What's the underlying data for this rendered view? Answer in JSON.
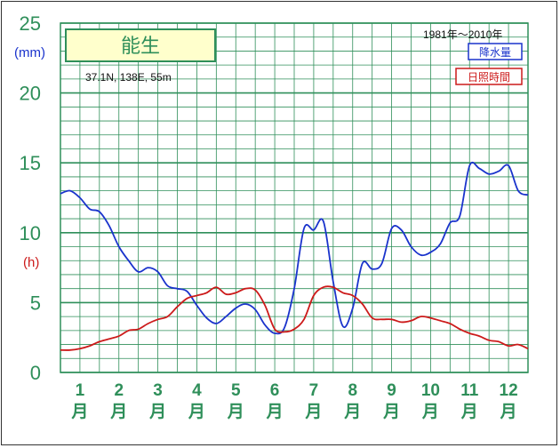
{
  "chart_data": {
    "type": "line",
    "title": "能生",
    "location": "37.1N, 138E, 55m",
    "period": "1981年～2010年",
    "y_unit_left": "(mm)",
    "y_unit_right": "(h)",
    "ylim": [
      0,
      25
    ],
    "yticks": [
      "0",
      "5",
      "10",
      "15",
      "20",
      "25"
    ],
    "months": [
      "1",
      "2",
      "3",
      "4",
      "5",
      "6",
      "7",
      "8",
      "9",
      "10",
      "11",
      "12"
    ],
    "month_suffix": "月",
    "grid": true,
    "legend_position": "top-right",
    "series": [
      {
        "name": "降水量",
        "color": "#1a33cc",
        "x": [
          0.0,
          0.25,
          0.5,
          0.75,
          1.0,
          1.25,
          1.5,
          1.75,
          2.0,
          2.25,
          2.5,
          2.75,
          3.0,
          3.25,
          3.5,
          3.75,
          4.0,
          4.25,
          4.5,
          4.75,
          5.0,
          5.25,
          5.5,
          5.75,
          6.0,
          6.25,
          6.5,
          6.75,
          7.0,
          7.25,
          7.5,
          7.75,
          8.0,
          8.25,
          8.5,
          8.75,
          9.0,
          9.25,
          9.5,
          9.75,
          10.0,
          10.25,
          10.5,
          10.75,
          11.0,
          11.25,
          11.5,
          11.75,
          12.0
        ],
        "values": [
          12.8,
          13.0,
          12.5,
          11.7,
          11.5,
          10.5,
          9.0,
          8.0,
          7.2,
          7.5,
          7.2,
          6.2,
          6.0,
          5.8,
          4.8,
          3.9,
          3.5,
          4.0,
          4.6,
          4.9,
          4.5,
          3.4,
          2.8,
          3.2,
          6.0,
          10.3,
          10.2,
          10.8,
          6.5,
          3.3,
          4.6,
          7.8,
          7.4,
          7.8,
          10.3,
          10.2,
          9.0,
          8.4,
          8.6,
          9.2,
          10.7,
          11.2,
          14.8,
          14.6,
          14.2,
          14.4,
          14.8,
          13.0,
          12.7
        ]
      },
      {
        "name": "日照時間",
        "color": "#cc1a1a",
        "x": [
          0.0,
          0.25,
          0.5,
          0.75,
          1.0,
          1.25,
          1.5,
          1.75,
          2.0,
          2.25,
          2.5,
          2.75,
          3.0,
          3.25,
          3.5,
          3.75,
          4.0,
          4.25,
          4.5,
          4.75,
          5.0,
          5.25,
          5.5,
          5.75,
          6.0,
          6.25,
          6.5,
          6.75,
          7.0,
          7.25,
          7.5,
          7.75,
          8.0,
          8.25,
          8.5,
          8.75,
          9.0,
          9.25,
          9.5,
          9.75,
          10.0,
          10.25,
          10.5,
          10.75,
          11.0,
          11.25,
          11.5,
          11.75,
          12.0
        ],
        "values": [
          1.6,
          1.6,
          1.7,
          1.9,
          2.2,
          2.4,
          2.6,
          3.0,
          3.1,
          3.5,
          3.8,
          4.0,
          4.7,
          5.3,
          5.5,
          5.7,
          6.1,
          5.6,
          5.7,
          6.0,
          5.9,
          4.8,
          3.1,
          2.9,
          3.1,
          3.8,
          5.5,
          6.1,
          6.1,
          5.7,
          5.5,
          4.9,
          3.9,
          3.8,
          3.8,
          3.6,
          3.7,
          4.0,
          3.9,
          3.7,
          3.5,
          3.1,
          2.8,
          2.6,
          2.3,
          2.2,
          1.9,
          2.0,
          1.7
        ]
      }
    ]
  }
}
